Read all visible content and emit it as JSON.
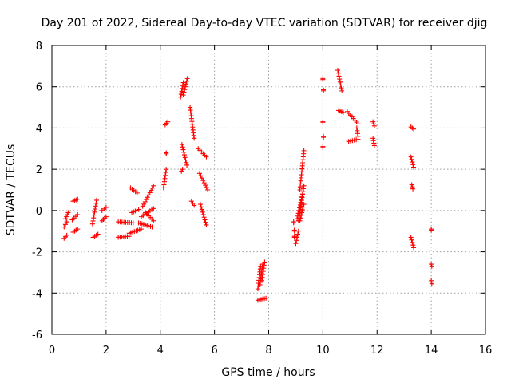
{
  "chart_data": {
    "type": "scatter",
    "title": "Day 201 of 2022, Sidereal Day-to-day VTEC variation (SDTVAR) for receiver djig",
    "xlabel": "GPS time / hours",
    "ylabel": "SDTVAR / TECUs",
    "xlim": [
      0,
      16
    ],
    "ylim": [
      -6,
      8
    ],
    "xticks": [
      "0",
      "2",
      "4",
      "6",
      "8",
      "10",
      "12",
      "14",
      "16"
    ],
    "yticks": [
      "-6",
      "-4",
      "-2",
      "0",
      "2",
      "4",
      "6",
      "8"
    ],
    "grid": true,
    "marker": "+",
    "color": "#ff0000",
    "segments": [
      {
        "x0": 0.45,
        "x1": 0.55,
        "y0": -1.35,
        "y1": -1.2
      },
      {
        "x0": 0.45,
        "x1": 0.55,
        "y0": -0.8,
        "y1": -0.55
      },
      {
        "x0": 0.5,
        "x1": 0.6,
        "y0": -0.4,
        "y1": -0.1
      },
      {
        "x0": 0.78,
        "x1": 0.95,
        "y0": -1.05,
        "y1": -0.9
      },
      {
        "x0": 0.75,
        "x1": 0.95,
        "y0": -0.45,
        "y1": -0.2
      },
      {
        "x0": 0.78,
        "x1": 0.95,
        "y0": 0.45,
        "y1": 0.55
      },
      {
        "x0": 1.52,
        "x1": 1.7,
        "y0": -1.3,
        "y1": -1.15
      },
      {
        "x0": 1.5,
        "x1": 1.65,
        "y0": -0.65,
        "y1": 0.5
      },
      {
        "x0": 1.85,
        "x1": 2.0,
        "y0": -0.5,
        "y1": -0.3
      },
      {
        "x0": 1.85,
        "x1": 2.0,
        "y0": 0.0,
        "y1": 0.15
      },
      {
        "x0": 2.45,
        "x1": 2.85,
        "y0": -1.3,
        "y1": -1.25
      },
      {
        "x0": 2.45,
        "x1": 3.0,
        "y0": -0.55,
        "y1": -0.6
      },
      {
        "x0": 2.9,
        "x1": 3.15,
        "y0": 1.1,
        "y1": 0.85
      },
      {
        "x0": 2.95,
        "x1": 3.2,
        "y0": -0.1,
        "y1": 0.05
      },
      {
        "x0": 2.85,
        "x1": 3.3,
        "y0": -1.1,
        "y1": -0.9
      },
      {
        "x0": 3.2,
        "x1": 3.7,
        "y0": -0.6,
        "y1": -0.8
      },
      {
        "x0": 3.3,
        "x1": 3.75,
        "y0": -0.3,
        "y1": 0.1
      },
      {
        "x0": 3.35,
        "x1": 3.75,
        "y0": 0.2,
        "y1": 1.2
      },
      {
        "x0": 3.45,
        "x1": 3.75,
        "y0": -0.1,
        "y1": -0.5
      },
      {
        "x0": 4.12,
        "x1": 4.22,
        "y0": 1.1,
        "y1": 2.0
      },
      {
        "x0": 4.18,
        "x1": 4.28,
        "y0": 4.15,
        "y1": 4.3
      },
      {
        "x0": 4.22,
        "x1": 4.22,
        "y0": 2.75,
        "y1": 2.8
      },
      {
        "x0": 4.75,
        "x1": 4.85,
        "y0": 5.5,
        "y1": 6.2
      },
      {
        "x0": 4.85,
        "x1": 5.0,
        "y0": 5.6,
        "y1": 6.4
      },
      {
        "x0": 4.8,
        "x1": 4.98,
        "y0": 3.2,
        "y1": 2.2
      },
      {
        "x0": 4.78,
        "x1": 4.82,
        "y0": 1.9,
        "y1": 2.0
      },
      {
        "x0": 5.1,
        "x1": 5.25,
        "y0": 5.0,
        "y1": 3.5
      },
      {
        "x0": 5.15,
        "x1": 5.25,
        "y0": 0.45,
        "y1": 0.25
      },
      {
        "x0": 5.4,
        "x1": 5.7,
        "y0": 3.0,
        "y1": 2.6
      },
      {
        "x0": 5.45,
        "x1": 5.75,
        "y0": 1.8,
        "y1": 1.0
      },
      {
        "x0": 5.48,
        "x1": 5.7,
        "y0": 0.3,
        "y1": -0.7
      },
      {
        "x0": 7.6,
        "x1": 7.9,
        "y0": -4.35,
        "y1": -4.25
      },
      {
        "x0": 7.6,
        "x1": 7.7,
        "y0": -3.8,
        "y1": -2.7
      },
      {
        "x0": 7.68,
        "x1": 7.78,
        "y0": -3.6,
        "y1": -2.6
      },
      {
        "x0": 7.75,
        "x1": 7.85,
        "y0": -3.4,
        "y1": -2.5
      },
      {
        "x0": 8.92,
        "x1": 8.92,
        "y0": -0.6,
        "y1": -0.55
      },
      {
        "x0": 8.95,
        "x1": 8.95,
        "y0": -1.0,
        "y1": -0.95
      },
      {
        "x0": 8.95,
        "x1": 8.95,
        "y0": -1.3,
        "y1": -1.25
      },
      {
        "x0": 9.0,
        "x1": 9.1,
        "y0": -1.6,
        "y1": -1.0
      },
      {
        "x0": 9.05,
        "x1": 9.25,
        "y0": -0.4,
        "y1": 0.8
      },
      {
        "x0": 9.1,
        "x1": 9.3,
        "y0": -0.5,
        "y1": 1.2
      },
      {
        "x0": 9.15,
        "x1": 9.3,
        "y0": 1.0,
        "y1": 2.9
      },
      {
        "x0": 9.15,
        "x1": 9.3,
        "y0": -0.5,
        "y1": 0.3
      },
      {
        "x0": 10.0,
        "x1": 10.0,
        "y0": 6.35,
        "y1": 6.4
      },
      {
        "x0": 10.02,
        "x1": 10.02,
        "y0": 5.8,
        "y1": 5.85
      },
      {
        "x0": 10.0,
        "x1": 10.0,
        "y0": 4.28,
        "y1": 4.3
      },
      {
        "x0": 10.02,
        "x1": 10.02,
        "y0": 3.55,
        "y1": 3.6
      },
      {
        "x0": 10.0,
        "x1": 10.0,
        "y0": 3.05,
        "y1": 3.1
      },
      {
        "x0": 10.55,
        "x1": 10.7,
        "y0": 6.8,
        "y1": 5.8
      },
      {
        "x0": 10.58,
        "x1": 10.75,
        "y0": 4.85,
        "y1": 4.75
      },
      {
        "x0": 10.9,
        "x1": 11.3,
        "y0": 4.8,
        "y1": 4.2
      },
      {
        "x0": 10.95,
        "x1": 11.3,
        "y0": 3.35,
        "y1": 3.45
      },
      {
        "x0": 11.25,
        "x1": 11.3,
        "y0": 4.0,
        "y1": 3.6
      },
      {
        "x0": 11.85,
        "x1": 11.9,
        "y0": 4.3,
        "y1": 4.1
      },
      {
        "x0": 11.85,
        "x1": 11.9,
        "y0": 3.5,
        "y1": 3.15
      },
      {
        "x0": 13.25,
        "x1": 13.35,
        "y0": 4.05,
        "y1": 3.95
      },
      {
        "x0": 13.25,
        "x1": 13.35,
        "y0": 2.6,
        "y1": 2.1
      },
      {
        "x0": 13.28,
        "x1": 13.32,
        "y0": 1.25,
        "y1": 1.05
      },
      {
        "x0": 13.25,
        "x1": 13.35,
        "y0": -1.3,
        "y1": -1.8
      },
      {
        "x0": 14.0,
        "x1": 14.0,
        "y0": -0.95,
        "y1": -0.9
      },
      {
        "x0": 14.0,
        "x1": 14.02,
        "y0": -2.6,
        "y1": -2.7
      },
      {
        "x0": 14.0,
        "x1": 14.02,
        "y0": -3.4,
        "y1": -3.55
      }
    ]
  }
}
